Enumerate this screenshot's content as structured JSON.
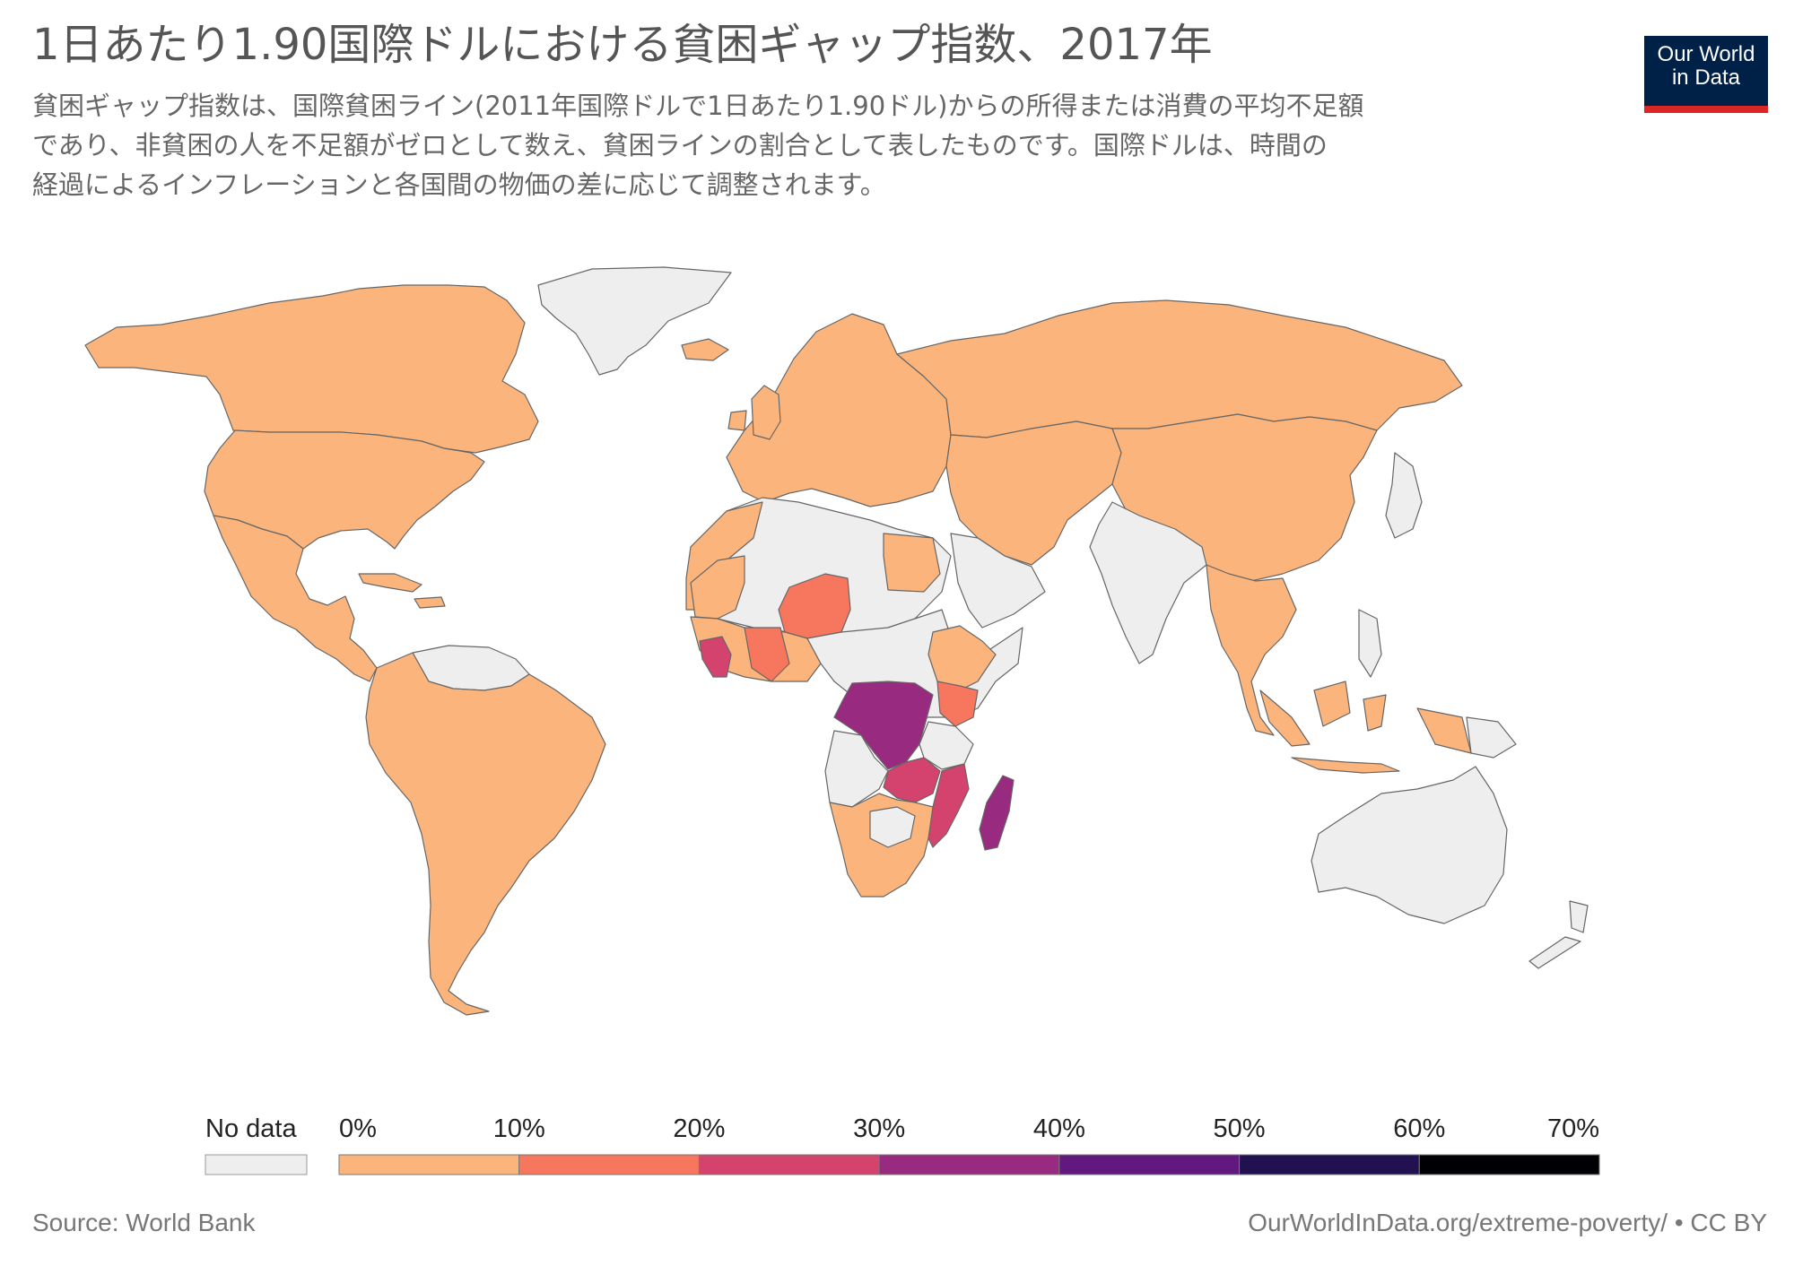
{
  "title": "1日あたり1.90国際ドルにおける貧困ギャップ指数、2017年",
  "subtitle_lines": [
    "貧困ギャップ指数は、国際貧困ライン(2011年国際ドルで1日あたり1.90ドル)からの所得または消費の平均不足額",
    "であり、非貧困の人を不足額がゼロとして数え、貧困ラインの割合として表したものです。国際ドルは、時間の",
    "経過によるインフレーションと各国間の物価の差に応じて調整されます。"
  ],
  "logo": {
    "line1": "Our World",
    "line2": "in Data",
    "bg": "#002147",
    "accent": "#dc2626"
  },
  "colors": {
    "no_data": "#eeeeee",
    "bin_0_10": "#fbb57c",
    "bin_10_20": "#f7775e",
    "bin_20_30": "#d3436e",
    "bin_30_40": "#982b7f",
    "bin_40_50": "#62197f",
    "bin_50_60": "#221150",
    "bin_60_70": "#000004",
    "border": "#555555"
  },
  "legend": {
    "no_data_label": "No data",
    "ticks": [
      "0%",
      "10%",
      "20%",
      "30%",
      "40%",
      "50%",
      "60%",
      "70%"
    ]
  },
  "footer": {
    "source": "Source: World Bank",
    "url": "OurWorldInData.org/extreme-poverty/ • CC BY"
  },
  "chart_data": {
    "type": "choropleth",
    "title": "1日あたり1.90国際ドルにおける貧困ギャップ指数、2017年",
    "unit": "%",
    "scale_bins": [
      0,
      10,
      20,
      30,
      40,
      50,
      60,
      70
    ],
    "regions": [
      {
        "name": "North America",
        "bin": "0-10%"
      },
      {
        "name": "South America",
        "bin": "0-10%"
      },
      {
        "name": "Europe",
        "bin": "0-10%"
      },
      {
        "name": "Russia",
        "bin": "0-10%"
      },
      {
        "name": "China",
        "bin": "0-10%"
      },
      {
        "name": "Niger",
        "bin": "10-20%"
      },
      {
        "name": "Kenya",
        "bin": "10-20%"
      },
      {
        "name": "DR Congo",
        "bin": "30-40%"
      },
      {
        "name": "Madagascar",
        "bin": "30-40%"
      },
      {
        "name": "Zambia",
        "bin": "20-30%"
      },
      {
        "name": "Mozambique",
        "bin": "20-30%"
      },
      {
        "name": "Greenland",
        "bin": "no data"
      },
      {
        "name": "Australia",
        "bin": "no data"
      },
      {
        "name": "India",
        "bin": "no data"
      }
    ]
  }
}
